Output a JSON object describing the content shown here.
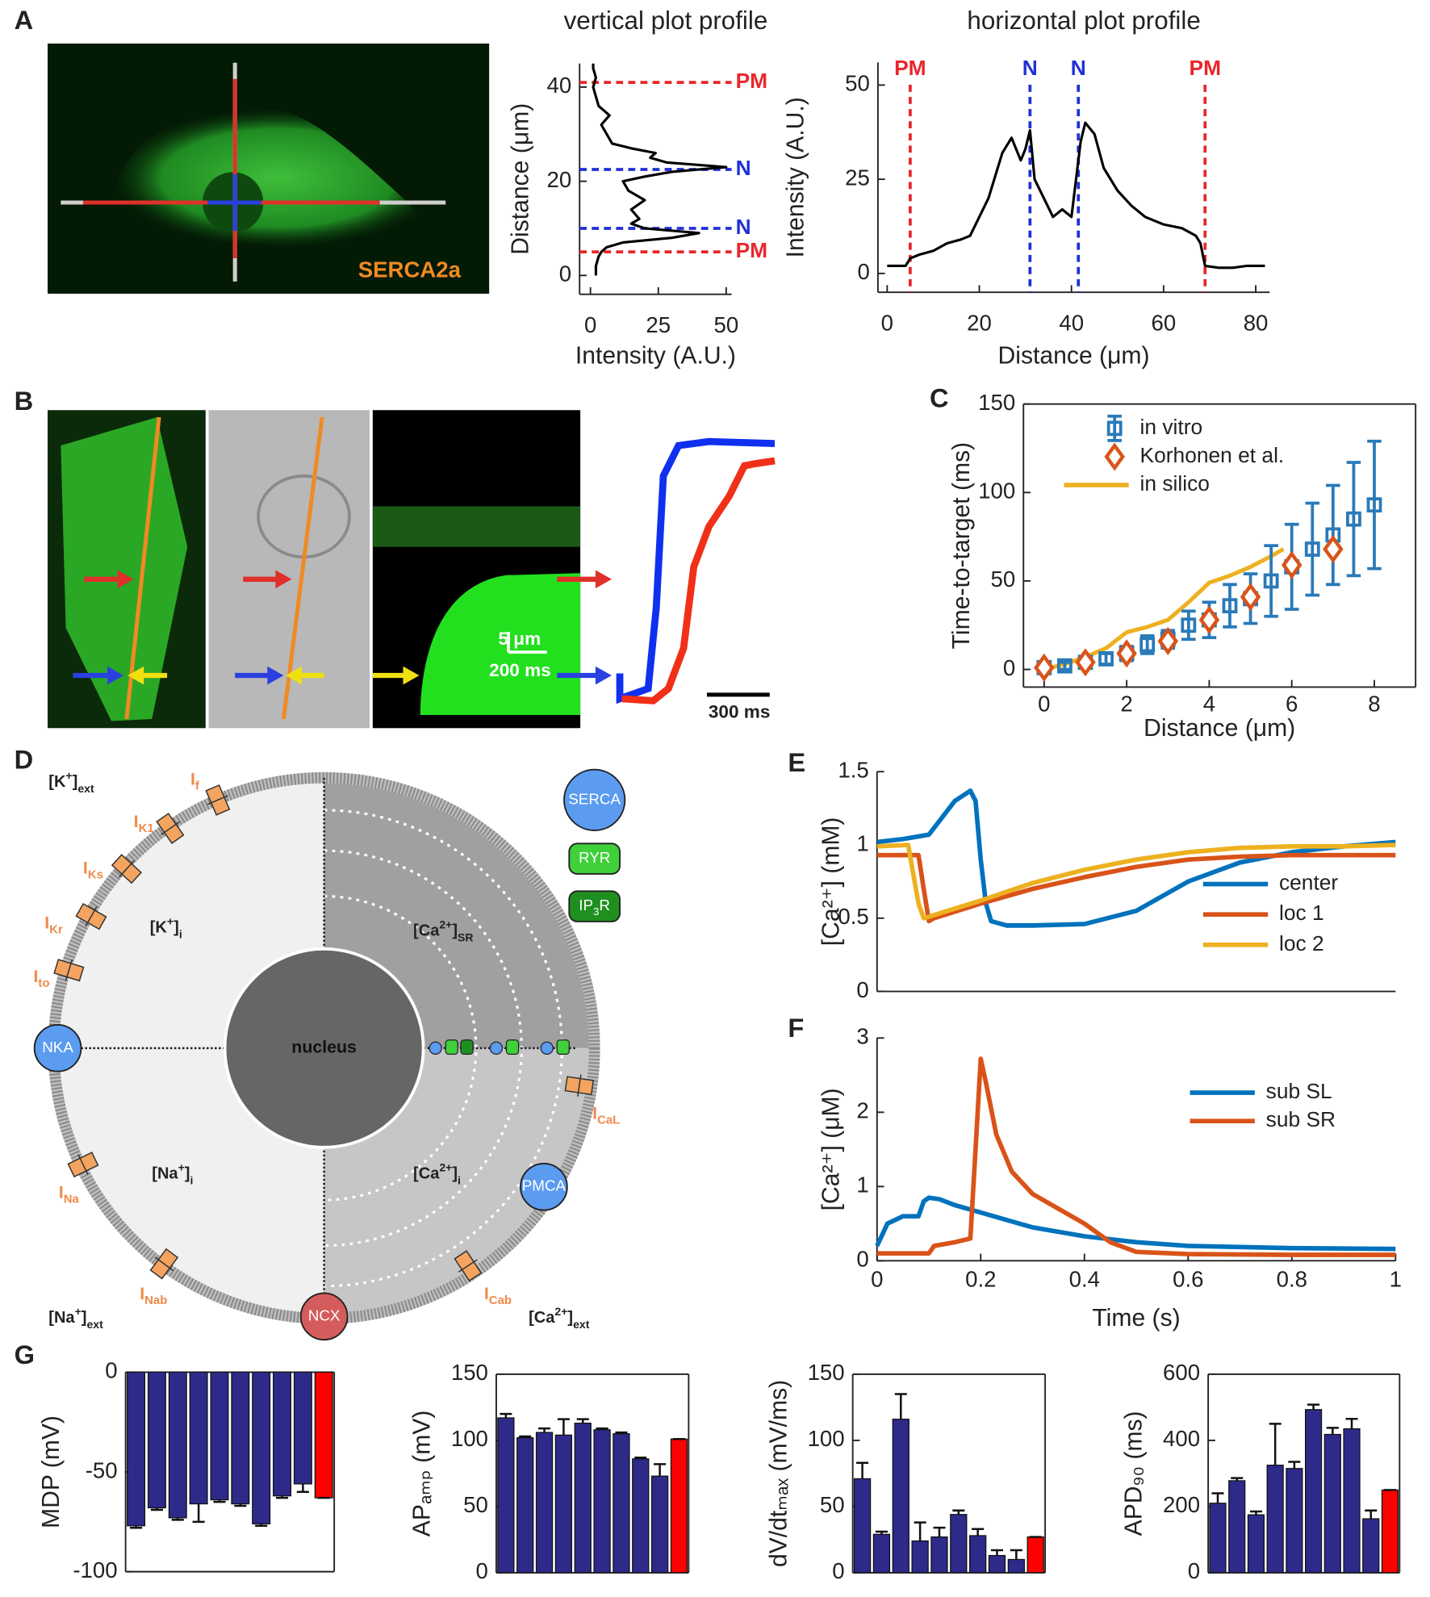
{
  "chart_data": [
    {
      "type": "line",
      "title": "vertical plot profile",
      "xlabel": "Intensity (A.U.)",
      "ylabel": "Distance (μm)",
      "xlim": [
        -4,
        52
      ],
      "xticks": [
        0,
        25,
        50
      ],
      "ylim": [
        -4,
        45
      ],
      "yticks": [
        0,
        20,
        40
      ],
      "series": [
        {
          "color": "#000000",
          "x": [
            2,
            2,
            3,
            4,
            6,
            12,
            30,
            40,
            20,
            15,
            18,
            15,
            20,
            14,
            12,
            20,
            30,
            50,
            28,
            22,
            24,
            15,
            8,
            6,
            4,
            7,
            3,
            2,
            1,
            2,
            1,
            1
          ],
          "values": [
            0,
            2,
            4,
            5,
            6,
            7,
            8,
            9,
            10,
            11,
            12,
            14,
            16,
            18,
            20,
            21,
            22,
            23,
            24,
            25,
            26,
            27,
            28,
            30,
            32,
            34,
            36,
            38,
            40,
            42,
            44,
            45
          ]
        }
      ],
      "ref_lines": [
        {
          "axis": "y",
          "value": 41,
          "label": "PM",
          "color": "#e8262b"
        },
        {
          "axis": "y",
          "value": 22.5,
          "label": "N",
          "color": "#2030d8"
        },
        {
          "axis": "y",
          "value": 10,
          "label": "N",
          "color": "#2030d8"
        },
        {
          "axis": "y",
          "value": 5,
          "label": "PM",
          "color": "#e8262b"
        }
      ]
    },
    {
      "type": "line",
      "title": "horizontal plot profile",
      "xlabel": "Distance (μm)",
      "ylabel": "Intensity (A.U.)",
      "xlim": [
        -2,
        83
      ],
      "xticks": [
        0,
        20,
        40,
        60,
        80
      ],
      "ylim": [
        -5,
        56
      ],
      "yticks": [
        0,
        25,
        50
      ],
      "series": [
        {
          "color": "#000000",
          "x": [
            0,
            2,
            4,
            5,
            7,
            10,
            13,
            16,
            18,
            20,
            22,
            25,
            27,
            29,
            30,
            31,
            32,
            34,
            36,
            38,
            40,
            42,
            43,
            45,
            47,
            50,
            53,
            56,
            60,
            64,
            67,
            68,
            69,
            72,
            75,
            78,
            82
          ],
          "values": [
            2,
            2,
            2,
            4,
            5,
            6,
            8,
            9,
            10,
            15,
            20,
            32,
            36,
            30,
            33,
            38,
            25,
            20,
            15,
            17,
            15,
            35,
            40,
            37,
            28,
            22,
            18,
            15,
            13,
            12,
            10,
            8,
            2,
            1.5,
            1.5,
            2,
            2
          ]
        }
      ],
      "ref_lines": [
        {
          "axis": "x",
          "value": 5,
          "label": "PM",
          "color": "#e8262b"
        },
        {
          "axis": "x",
          "value": 31,
          "label": "N",
          "color": "#2030d8"
        },
        {
          "axis": "x",
          "value": 41.5,
          "label": "N",
          "color": "#2030d8"
        },
        {
          "axis": "x",
          "value": 69,
          "label": "PM",
          "color": "#e8262b"
        }
      ]
    },
    {
      "type": "scatter",
      "xlabel": "Distance (μm)",
      "ylabel": "Time-to-target (ms)",
      "xlim": [
        -0.5,
        9
      ],
      "xticks": [
        0,
        2,
        4,
        6,
        8
      ],
      "ylim": [
        -10,
        150
      ],
      "yticks": [
        0,
        50,
        100,
        150
      ],
      "legend": "upper left",
      "series": [
        {
          "name": "in vitro",
          "color": "#2a7ab8",
          "marker": "square",
          "x": [
            0,
            0.5,
            1,
            1.5,
            2,
            2.5,
            3,
            3.5,
            4,
            4.5,
            5,
            5.5,
            6,
            6.5,
            7,
            7.5,
            8
          ],
          "values": [
            1,
            2,
            4,
            6,
            9,
            14,
            17,
            25,
            28,
            36,
            40,
            50,
            58,
            68,
            76,
            85,
            93
          ],
          "errors": [
            2,
            2,
            3,
            3,
            4,
            5,
            5,
            8,
            10,
            12,
            14,
            20,
            24,
            26,
            28,
            32,
            36
          ]
        },
        {
          "name": "Korhonen et al.",
          "color": "#d9541a",
          "marker": "diamond",
          "x": [
            0,
            1,
            2,
            3,
            4,
            5,
            6,
            7
          ],
          "values": [
            1,
            4,
            9,
            16,
            28,
            41,
            59,
            68
          ]
        },
        {
          "name": "in silico",
          "color": "#edb120",
          "x": [
            0,
            0.5,
            1,
            1.5,
            2,
            2.5,
            3,
            3.5,
            4,
            4.5,
            5,
            5.5,
            5.8
          ],
          "values": [
            0,
            3,
            7,
            12,
            21,
            24,
            28,
            38,
            49,
            53,
            58,
            64,
            68
          ]
        }
      ]
    },
    {
      "type": "line",
      "ylabel": "[Ca²⁺] (mM)",
      "xlim": [
        0,
        1
      ],
      "ylim": [
        0,
        1.5
      ],
      "yticks": [
        0,
        0.5,
        1,
        1.5
      ],
      "legend": "lower right",
      "series": [
        {
          "name": "center",
          "color": "#0072bd",
          "x": [
            0,
            0.05,
            0.1,
            0.15,
            0.18,
            0.19,
            0.2,
            0.21,
            0.22,
            0.25,
            0.3,
            0.4,
            0.5,
            0.6,
            0.7,
            0.8,
            0.9,
            1
          ],
          "values": [
            1.02,
            1.04,
            1.07,
            1.3,
            1.37,
            1.3,
            0.9,
            0.6,
            0.48,
            0.45,
            0.45,
            0.46,
            0.55,
            0.75,
            0.88,
            0.95,
            0.99,
            1.02
          ]
        },
        {
          "name": "loc 1",
          "color": "#d95319",
          "x": [
            0,
            0.05,
            0.08,
            0.09,
            0.1,
            0.11,
            0.2,
            0.3,
            0.4,
            0.5,
            0.6,
            0.7,
            0.8,
            0.9,
            1
          ],
          "values": [
            0.93,
            0.93,
            0.93,
            0.7,
            0.48,
            0.5,
            0.6,
            0.7,
            0.78,
            0.85,
            0.9,
            0.92,
            0.93,
            0.93,
            0.93
          ]
        },
        {
          "name": "loc 2",
          "color": "#edb120",
          "x": [
            0,
            0.06,
            0.07,
            0.08,
            0.09,
            0.1,
            0.2,
            0.3,
            0.4,
            0.5,
            0.6,
            0.7,
            0.8,
            0.9,
            1
          ],
          "values": [
            0.99,
            1,
            0.8,
            0.6,
            0.5,
            0.51,
            0.62,
            0.74,
            0.83,
            0.9,
            0.95,
            0.98,
            0.99,
            0.99,
            1
          ]
        }
      ]
    },
    {
      "type": "line",
      "xlabel": "Time (s)",
      "ylabel": "[Ca²⁺] (μM)",
      "xlim": [
        0,
        1
      ],
      "xticks": [
        0,
        0.2,
        0.4,
        0.6,
        0.8,
        1
      ],
      "ylim": [
        0,
        3
      ],
      "yticks": [
        0,
        1,
        2,
        3
      ],
      "legend": "upper right",
      "series": [
        {
          "name": "sub SL",
          "color": "#0072bd",
          "x": [
            0,
            0.02,
            0.05,
            0.08,
            0.09,
            0.1,
            0.12,
            0.15,
            0.2,
            0.3,
            0.4,
            0.5,
            0.6,
            0.8,
            1
          ],
          "values": [
            0.2,
            0.5,
            0.6,
            0.6,
            0.8,
            0.85,
            0.83,
            0.75,
            0.65,
            0.45,
            0.33,
            0.25,
            0.2,
            0.17,
            0.16
          ]
        },
        {
          "name": "sub SR",
          "color": "#d95319",
          "x": [
            0,
            0.1,
            0.11,
            0.15,
            0.18,
            0.19,
            0.2,
            0.21,
            0.23,
            0.26,
            0.3,
            0.35,
            0.4,
            0.45,
            0.5,
            0.6,
            0.8,
            1
          ],
          "values": [
            0.1,
            0.1,
            0.2,
            0.25,
            0.3,
            1.5,
            2.72,
            2.4,
            1.7,
            1.2,
            0.9,
            0.7,
            0.5,
            0.25,
            0.12,
            0.09,
            0.08,
            0.08
          ]
        }
      ]
    },
    {
      "type": "bar",
      "ylabel": "MDP (mV)",
      "ylim": [
        -100,
        0
      ],
      "yticks": [
        0,
        -50,
        -100
      ],
      "values": [
        -77,
        -68,
        -73,
        -66,
        -64,
        -66,
        -76,
        -62,
        -56,
        -63
      ],
      "errors": [
        1,
        1,
        1,
        9,
        1,
        1,
        1,
        1,
        4,
        0
      ],
      "colors": [
        "#2d2a8a",
        "#2d2a8a",
        "#2d2a8a",
        "#2d2a8a",
        "#2d2a8a",
        "#2d2a8a",
        "#2d2a8a",
        "#2d2a8a",
        "#2d2a8a",
        "#ff0000"
      ]
    },
    {
      "type": "bar",
      "ylabel": "APₐₘₚ (mV)",
      "ylim": [
        0,
        150
      ],
      "yticks": [
        0,
        50,
        100,
        150
      ],
      "values": [
        117,
        102,
        106,
        104,
        113,
        108,
        105,
        86,
        73,
        101
      ],
      "errors": [
        3,
        1,
        3,
        12,
        3,
        1,
        1,
        1,
        9,
        0
      ],
      "colors": [
        "#2d2a8a",
        "#2d2a8a",
        "#2d2a8a",
        "#2d2a8a",
        "#2d2a8a",
        "#2d2a8a",
        "#2d2a8a",
        "#2d2a8a",
        "#2d2a8a",
        "#ff0000"
      ]
    },
    {
      "type": "bar",
      "ylabel": "dV/dtₘₐₓ (mV/ms)",
      "ylim": [
        0,
        150
      ],
      "yticks": [
        0,
        50,
        100,
        150
      ],
      "values": [
        71,
        29,
        116,
        24,
        27,
        44,
        28,
        13,
        10,
        27
      ],
      "errors": [
        12,
        2,
        19,
        14,
        7,
        3,
        5,
        4,
        7,
        0
      ],
      "colors": [
        "#2d2a8a",
        "#2d2a8a",
        "#2d2a8a",
        "#2d2a8a",
        "#2d2a8a",
        "#2d2a8a",
        "#2d2a8a",
        "#2d2a8a",
        "#2d2a8a",
        "#ff0000"
      ]
    },
    {
      "type": "bar",
      "ylabel": "APD₉₀ (ms)",
      "ylim": [
        0,
        600
      ],
      "yticks": [
        0,
        200,
        400,
        600
      ],
      "values": [
        210,
        278,
        175,
        325,
        315,
        493,
        418,
        435,
        163,
        250
      ],
      "errors": [
        30,
        8,
        10,
        125,
        20,
        15,
        20,
        30,
        25,
        0
      ],
      "colors": [
        "#2d2a8a",
        "#2d2a8a",
        "#2d2a8a",
        "#2d2a8a",
        "#2d2a8a",
        "#2d2a8a",
        "#2d2a8a",
        "#2d2a8a",
        "#2d2a8a",
        "#ff0000"
      ]
    }
  ],
  "figure": {
    "panel_labels": [
      "A",
      "B",
      "C",
      "D",
      "E",
      "F",
      "G"
    ],
    "image_labels": {
      "stain": "SERCA2a",
      "scale_space": "5 μm",
      "scale_time": "200 ms",
      "scale_trace": "300 ms"
    },
    "diagram": {
      "nucleus": "nucleus",
      "compartments": [
        [
          "[K",
          {
            "sup": "+"
          },
          "]",
          {
            "sub": "ext"
          }
        ],
        [
          "[K",
          {
            "sup": "+"
          },
          "]",
          {
            "sub": "i"
          }
        ],
        [
          "[Ca",
          {
            "sup": "2+"
          },
          "]",
          {
            "sub": "SR"
          }
        ],
        [
          "[Na",
          {
            "sup": "+"
          },
          "]",
          {
            "sub": "i"
          }
        ],
        [
          "[Ca",
          {
            "sup": "2+"
          },
          "]",
          {
            "sub": "i"
          }
        ],
        [
          "[Na",
          {
            "sup": "+"
          },
          "]",
          {
            "sub": "ext"
          }
        ],
        [
          "[Ca",
          {
            "sup": "2+"
          },
          "]",
          {
            "sub": "ext"
          }
        ]
      ],
      "currents": [
        [
          "I",
          {
            "sub": "f"
          }
        ],
        [
          "I",
          {
            "sub": "K1"
          }
        ],
        [
          "I",
          {
            "sub": "Ks"
          }
        ],
        [
          "I",
          {
            "sub": "Kr"
          }
        ],
        [
          "I",
          {
            "sub": "to"
          }
        ],
        [
          "I",
          {
            "sub": "CaL"
          }
        ],
        [
          "I",
          {
            "sub": "Na"
          }
        ],
        [
          "I",
          {
            "sub": "Nab"
          }
        ],
        [
          "I",
          {
            "sub": "Cab"
          }
        ]
      ],
      "pumps": [
        "NKA",
        "PMCA",
        "NCX"
      ],
      "legend": [
        "SERCA",
        "RYR",
        [
          "IP",
          {
            "sub": "3"
          },
          "R"
        ]
      ]
    }
  }
}
